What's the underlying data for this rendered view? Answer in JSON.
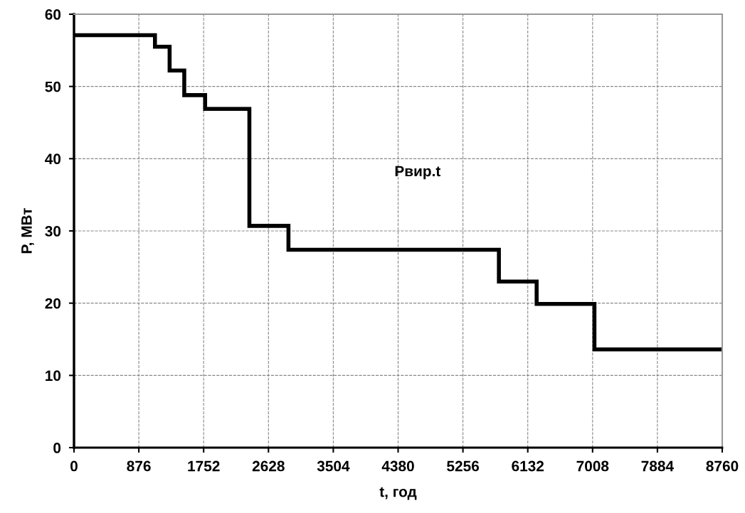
{
  "chart_data": {
    "type": "step",
    "xlabel": "t, год",
    "ylabel": "P, МВт",
    "x": [
      0,
      1094,
      1292,
      1490,
      1772,
      2370,
      2898,
      5742,
      6252,
      7033,
      8760
    ],
    "series": [
      {
        "color": "#000000",
        "values": [
          57.1,
          55.5,
          52.2,
          48.8,
          46.9,
          30.7,
          27.4,
          23.0,
          19.9,
          13.6,
          13.6
        ]
      }
    ],
    "annotations": [
      "Рвир.t"
    ],
    "xlim": [
      0,
      8760
    ],
    "xticks": [
      0,
      876,
      1752,
      2628,
      3504,
      4380,
      5256,
      6132,
      7008,
      7884,
      8760
    ],
    "ylim": [
      0,
      60
    ],
    "yticks": [
      0,
      10,
      20,
      30,
      40,
      50,
      60
    ],
    "grid": true,
    "marker": "none",
    "line_style": "solid"
  }
}
